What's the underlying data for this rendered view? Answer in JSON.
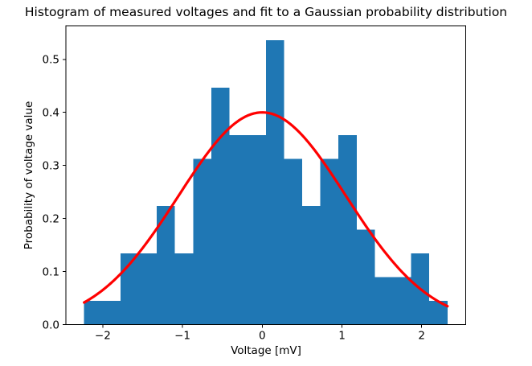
{
  "chart_data": {
    "type": "bar",
    "subtype": "histogram-with-gaussian-fit",
    "title": "Histogram of measured voltages and fit to a Gaussian probability distribution",
    "xlabel": "Voltage [mV]",
    "ylabel": "Probability of voltage value",
    "xlim": [
      -2.4625,
      2.5525
    ],
    "ylim": [
      0,
      0.5633
    ],
    "grid": false,
    "legend": "none",
    "bar_color": "#1f77b4",
    "line_color": "#ff0000",
    "xticks": [
      {
        "v": -2,
        "label": "−2"
      },
      {
        "v": -1,
        "label": "−1"
      },
      {
        "v": 0,
        "label": "0"
      },
      {
        "v": 1,
        "label": "1"
      },
      {
        "v": 2,
        "label": "2"
      }
    ],
    "yticks": [
      {
        "v": 0.0,
        "label": "0.0"
      },
      {
        "v": 0.1,
        "label": "0.1"
      },
      {
        "v": 0.2,
        "label": "0.2"
      },
      {
        "v": 0.3,
        "label": "0.3"
      },
      {
        "v": 0.4,
        "label": "0.4"
      },
      {
        "v": 0.5,
        "label": "0.5"
      }
    ],
    "histogram": {
      "bin_start": -2.234,
      "bin_width": 0.2279,
      "n_bins": 20,
      "values": [
        0.0447,
        0.0447,
        0.134,
        0.134,
        0.2234,
        0.134,
        0.3127,
        0.4467,
        0.3574,
        0.3574,
        0.5361,
        0.3127,
        0.2234,
        0.3127,
        0.3574,
        0.1787,
        0.0893,
        0.0893,
        0.134,
        0.0447
      ]
    },
    "gaussian_fit": {
      "amplitude": 0.4,
      "mean": 0.0,
      "sigma": 1.05,
      "x_start": -2.234,
      "x_end": 2.324
    }
  }
}
